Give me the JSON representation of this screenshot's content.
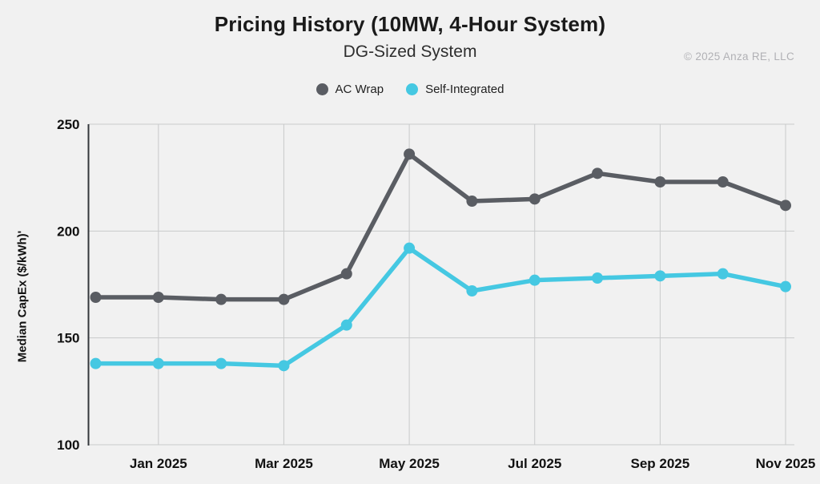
{
  "header": {
    "title": "Pricing History (10MW, 4-Hour System)",
    "subtitle": "DG-Sized System",
    "copyright": "© 2025 Anza RE, LLC"
  },
  "legend": {
    "items": [
      {
        "label": "AC Wrap",
        "color": "#5A5D63"
      },
      {
        "label": "Self-Integrated",
        "color": "#45C8E2"
      }
    ]
  },
  "colors": {
    "background": "#F1F1F1",
    "gridline": "#C9CACB",
    "axis": "#34373C",
    "ac_wrap": "#5A5D63",
    "self_integrated": "#45C8E2"
  },
  "chart_data": {
    "type": "line",
    "title": "Pricing History (10MW, 4-Hour System)",
    "subtitle": "DG-Sized System",
    "xlabel": "",
    "ylabel": "Median CapEx ($/kWh)'",
    "ylim": [
      100,
      250
    ],
    "yticks": [
      100,
      150,
      200,
      250
    ],
    "grid": true,
    "legend_position": "top",
    "x": [
      "Dec 2024",
      "Jan 2025",
      "Feb 2025",
      "Mar 2025",
      "Apr 2025",
      "May 2025",
      "Jun 2025",
      "Jul 2025",
      "Aug 2025",
      "Sep 2025",
      "Oct 2025",
      "Nov 2025"
    ],
    "xtick_labels": [
      "Jan 2025",
      "Mar 2025",
      "May 2025",
      "Jul 2025",
      "Sep 2025",
      "Nov 2025"
    ],
    "xtick_indices": [
      1,
      3,
      5,
      7,
      9,
      11
    ],
    "series": [
      {
        "name": "AC Wrap",
        "color": "#5A5D63",
        "values": [
          169,
          169,
          168,
          168,
          180,
          236,
          214,
          215,
          227,
          223,
          223,
          212
        ]
      },
      {
        "name": "Self-Integrated",
        "color": "#45C8E2",
        "values": [
          138,
          138,
          138,
          137,
          156,
          192,
          172,
          177,
          178,
          179,
          180,
          174
        ]
      }
    ]
  }
}
